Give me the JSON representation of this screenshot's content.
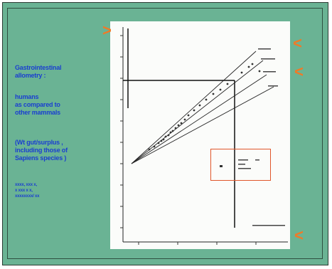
{
  "slide": {
    "captions": [
      "Gastrointestinal\nallometry   :",
      "humans\nas compared    to\nother mammals",
      "(Wt gut/surplus ,\nincluding those of\nSapiens   species )",
      "xxxx,       xxx    x,\nx xxx  x         x,\nxxxxxxxx/          xx"
    ],
    "markers": [
      ">",
      "<",
      "<",
      "<"
    ]
  },
  "colors": {
    "background": "#6ab394",
    "caption_text": "#1a3fd0",
    "marker": "#f07a27",
    "highlight_box": "#e0562a",
    "plot_bg": "#fbfcfa"
  },
  "plot": {
    "type": "scatter-with-regression-lines",
    "series_count": 4,
    "marker_icon": "orange-chevron"
  }
}
